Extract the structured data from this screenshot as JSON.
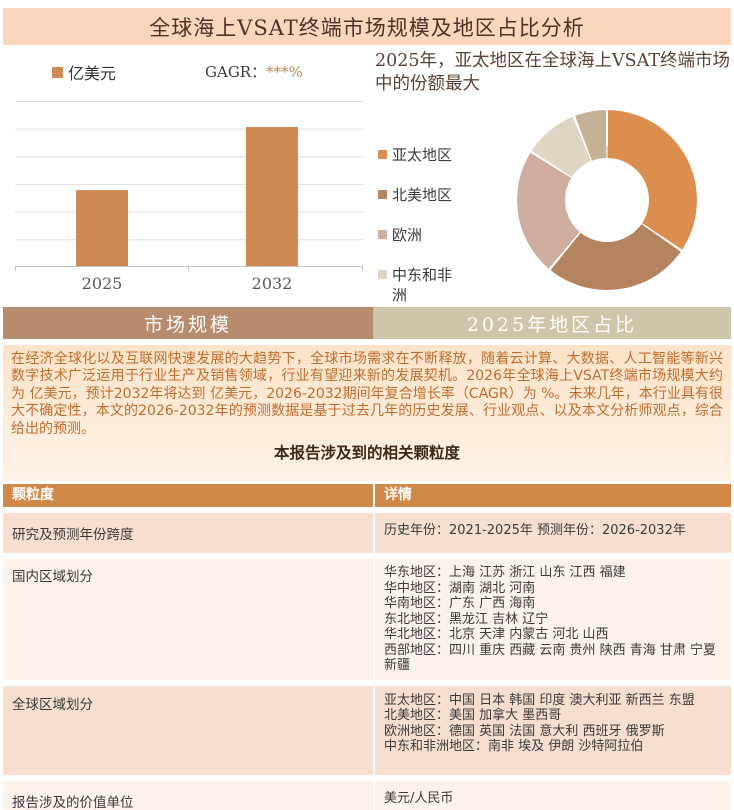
{
  "header": {
    "title": "全球海上VSAT终端市场规模及地区占比分析"
  },
  "tabs": [
    {
      "label": "市场规模"
    },
    {
      "label": "2025年地区占比"
    }
  ],
  "chart_data": [
    {
      "type": "bar",
      "title": "全球海上VSAT终端市场规模",
      "unit": "亿美元",
      "cagr_label": "GAGR：",
      "cagr_value": "***%",
      "categories": [
        "2025",
        "2032"
      ],
      "values": [
        "***",
        "***"
      ],
      "relative_heights_pct": [
        46,
        84
      ],
      "bar_color": "#cd8a52",
      "grid": true,
      "xlabel": "",
      "ylabel": ""
    },
    {
      "type": "pie",
      "donut": true,
      "title": "2025年，亚太地区在全球海上VSAT终端市场中的份额最大",
      "legend_position": "left",
      "segments": [
        {
          "label": "亚太地区",
          "pct": 34.5,
          "color": "#db8e4e"
        },
        {
          "label": "北美地区",
          "pct": 26.5,
          "color": "#b48460"
        },
        {
          "label": "欧洲",
          "pct": 23.0,
          "color": "#cfaea0"
        },
        {
          "label": "中东和非洲",
          "pct": 10.0,
          "color": "#ded6c2"
        },
        {
          "label": "",
          "pct": 6.0,
          "color": "#c3b295"
        }
      ]
    }
  ],
  "paragraph": {
    "text": "在经济全球化以及互联网快速发展的大趋势下，全球市场需求在不断释放，随着云计算、大数据、人工智能等新兴数字技术广泛运用于行业生产及销售领域，行业有望迎来新的发展契机。2026年全球海上VSAT终端市场规模大约为 亿美元，预计2032年将达到 亿美元，2026-2032期间年复合增长率（CAGR）为 %。未来几年，本行业具有很大不确定性，本文的2026-2032年的预测数据是基于过去几年的历史发展、行业观点、以及本文分析师观点，综合给出的预测。"
  },
  "table": {
    "caption": "本报告涉及到的相关颗粒度",
    "headers": [
      "颗粒度",
      "详情"
    ],
    "rows": [
      {
        "label": "研究及预测年份跨度",
        "details": [
          "历史年份：2021-2025年  预测年份：2026-2032年"
        ],
        "tint": "deep"
      },
      {
        "label": "国内区域划分",
        "details": [
          "华东地区：上海  江苏  浙江  山东  江西  福建",
          "华中地区：湖南  湖北  河南",
          "华南地区：广东  广西  海南",
          "东北地区：黑龙江  吉林  辽宁",
          "华北地区：北京  天津  内蒙古  河北  山西",
          "西部地区：四川  重庆  西藏  云南  贵州  陕西  青海  甘肃  宁夏  新疆"
        ],
        "tint": "light"
      },
      {
        "label": "全球区域划分",
        "details": [
          "亚太地区：中国  日本  韩国  印度  澳大利亚  新西兰  东盟",
          "北美地区：美国  加拿大  墨西哥",
          "欧洲地区：德国  英国  法国  意大利  西班牙  俄罗斯",
          "中东和非洲地区：南非  埃及  伊朗  沙特阿拉伯"
        ],
        "tint": "deep"
      },
      {
        "label": "报告涉及的价值单位",
        "details": [
          "美元/人民币"
        ],
        "tint": "light"
      }
    ]
  },
  "colors": {
    "title_band_bg": "#fad6bd",
    "bar_accent": "#cd8a52",
    "tab_left_bg": "#ba8c6e",
    "tab_right_bg": "#cfc5aa",
    "table_header_bg": "#d08948",
    "row_deep_bg": "#f6dfd1",
    "row_light_bg": "#fdf2eb",
    "paragraph_text": "#c06c2e"
  }
}
